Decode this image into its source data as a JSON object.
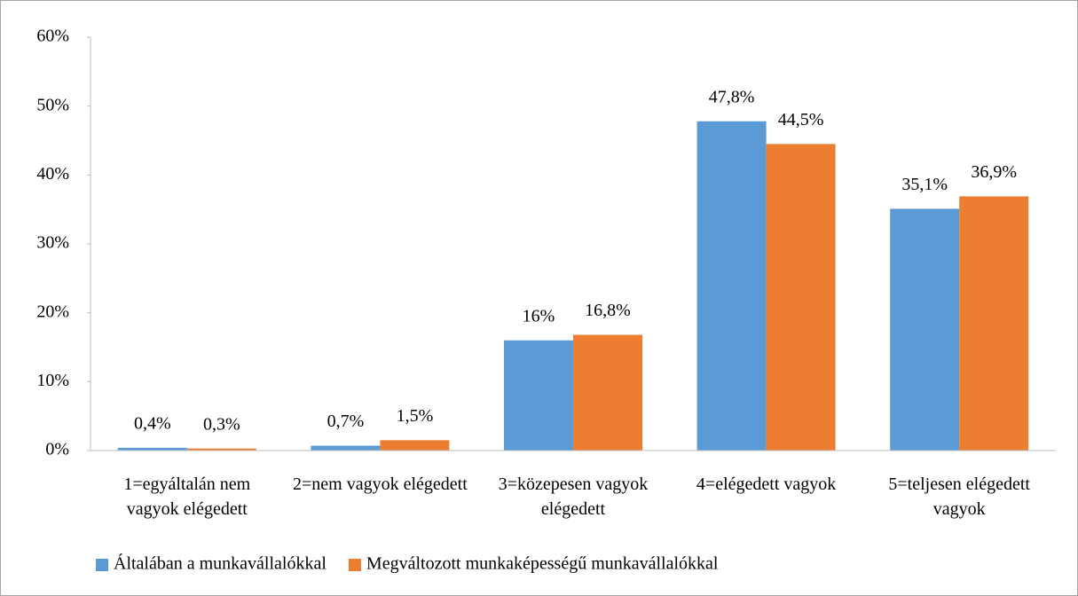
{
  "chart_data": {
    "type": "bar",
    "categories": [
      "1=egyáltalán nem vagyok elégedett",
      "2=nem vagyok elégedett",
      "3=közepesen vagyok elégedett",
      "4=elégedett vagyok",
      "5=teljesen elégedett vagyok"
    ],
    "series": [
      {
        "name": "Általában a munkavállalókkal",
        "color": "#5b9bd5",
        "values": [
          0.4,
          0.7,
          16,
          47.8,
          35.1
        ],
        "value_labels": [
          "0,4%",
          "0,7%",
          "16%",
          "47,8%",
          "35,1%"
        ]
      },
      {
        "name": "Megváltozott munkaképességű munkavállalókkal",
        "color": "#ed7d31",
        "values": [
          0.3,
          1.5,
          16.8,
          44.5,
          36.9
        ],
        "value_labels": [
          "0,3%",
          "1,5%",
          "16,8%",
          "44,5%",
          "36,9%"
        ]
      }
    ],
    "ylim": [
      0,
      60
    ],
    "yticks": [
      {
        "value": 0,
        "label": "0%"
      },
      {
        "value": 10,
        "label": "10%"
      },
      {
        "value": 20,
        "label": "20%"
      },
      {
        "value": 30,
        "label": "30%"
      },
      {
        "value": 40,
        "label": "40%"
      },
      {
        "value": 50,
        "label": "50%"
      },
      {
        "value": 60,
        "label": "60%"
      }
    ],
    "legend": "bottom"
  }
}
